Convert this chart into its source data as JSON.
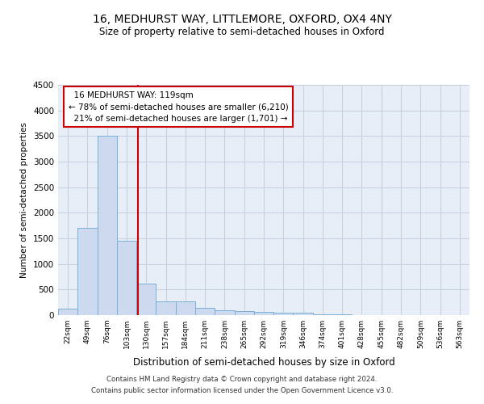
{
  "title_line1": "16, MEDHURST WAY, LITTLEMORE, OXFORD, OX4 4NY",
  "title_line2": "Size of property relative to semi-detached houses in Oxford",
  "xlabel": "Distribution of semi-detached houses by size in Oxford",
  "ylabel": "Number of semi-detached properties",
  "footer_line1": "Contains HM Land Registry data © Crown copyright and database right 2024.",
  "footer_line2": "Contains public sector information licensed under the Open Government Licence v3.0.",
  "property_label": "16 MEDHURST WAY: 119sqm",
  "pct_smaller": 78,
  "count_smaller": 6210,
  "pct_larger": 21,
  "count_larger": 1701,
  "bar_categories": [
    "22sqm",
    "49sqm",
    "76sqm",
    "103sqm",
    "130sqm",
    "157sqm",
    "184sqm",
    "211sqm",
    "238sqm",
    "265sqm",
    "292sqm",
    "319sqm",
    "346sqm",
    "374sqm",
    "401sqm",
    "428sqm",
    "455sqm",
    "482sqm",
    "509sqm",
    "536sqm",
    "563sqm"
  ],
  "bar_values": [
    130,
    1700,
    3500,
    1450,
    620,
    270,
    270,
    150,
    100,
    80,
    70,
    50,
    40,
    15,
    10,
    5,
    3,
    2,
    1,
    1,
    0
  ],
  "bar_color": "#ccd9ef",
  "bar_edge_color": "#7aafd4",
  "vline_color": "#cc0000",
  "vline_x_index": 3.59,
  "ylim": [
    0,
    4500
  ],
  "yticks": [
    0,
    500,
    1000,
    1500,
    2000,
    2500,
    3000,
    3500,
    4000,
    4500
  ],
  "background_color": "#ffffff",
  "plot_bg_color": "#e8eef8",
  "grid_color": "#c5d0e0"
}
